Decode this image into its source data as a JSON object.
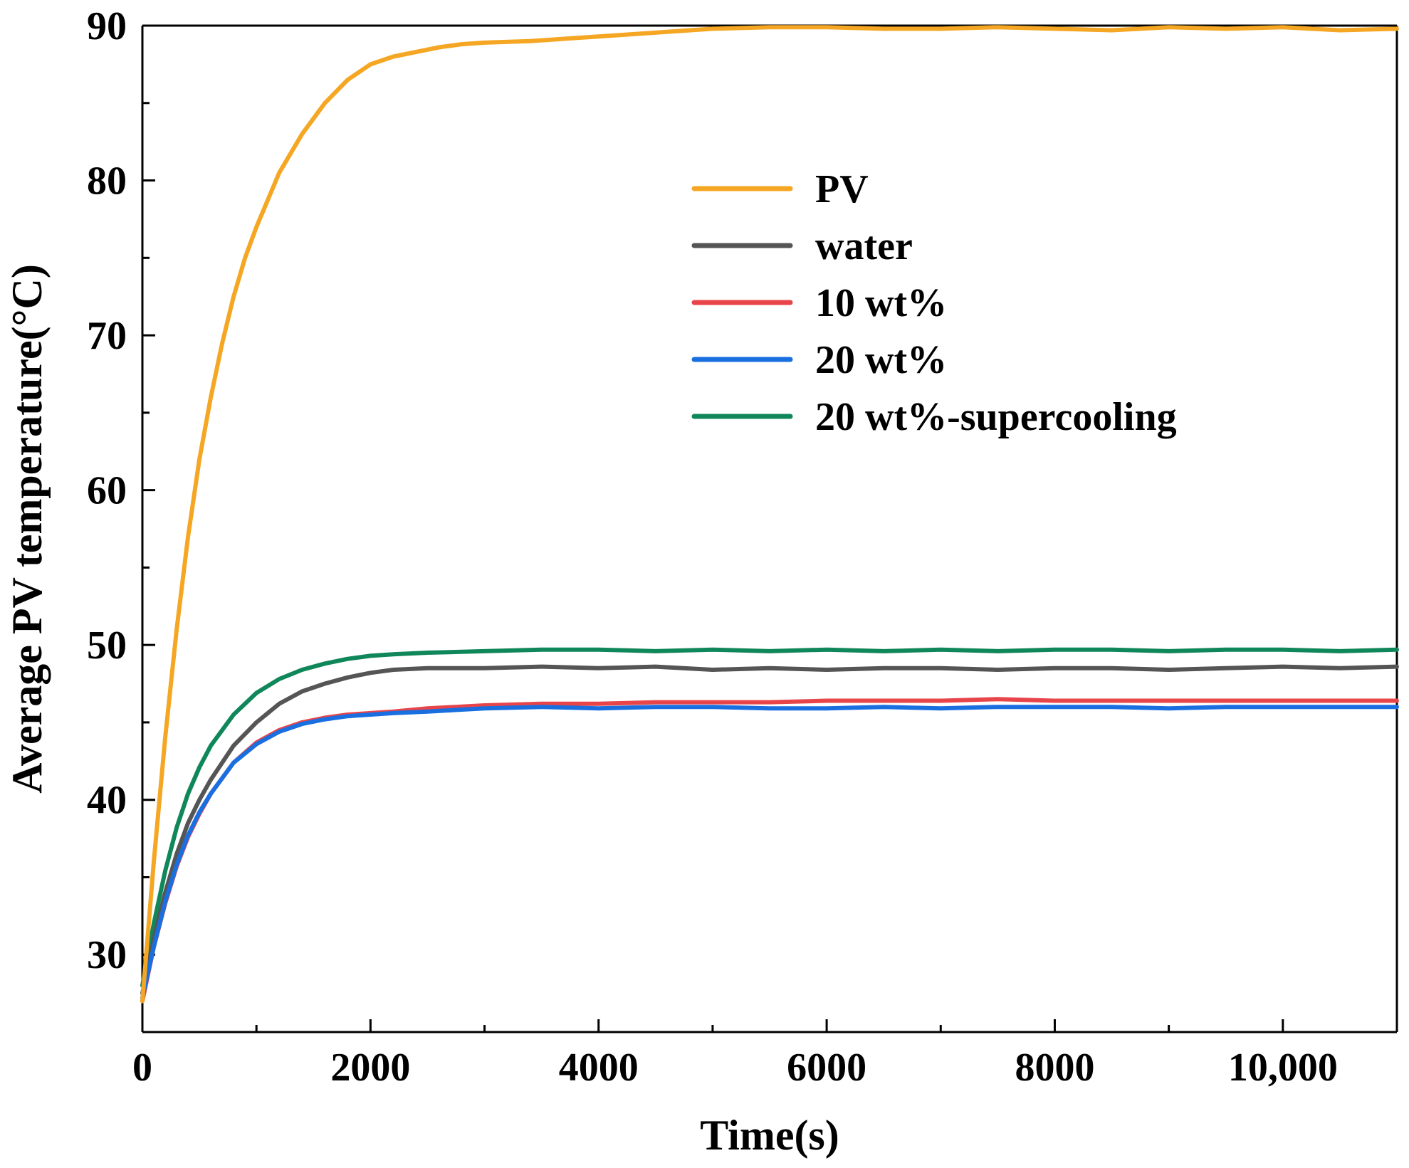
{
  "chart_data": {
    "type": "line",
    "title": "",
    "xlabel": "Time(s)",
    "ylabel": "Average PV temperature(°C)",
    "xlim": [
      0,
      11000
    ],
    "ylim": [
      25,
      90
    ],
    "x_ticks": [
      0,
      2000,
      4000,
      6000,
      8000,
      10000
    ],
    "x_tick_labels": [
      "0",
      "2000",
      "4000",
      "6000",
      "8000",
      "10,000"
    ],
    "x_minor_ticks": [
      1000,
      3000,
      5000,
      7000,
      9000
    ],
    "y_ticks": [
      30,
      40,
      50,
      60,
      70,
      80,
      90
    ],
    "y_tick_labels": [
      "30",
      "40",
      "50",
      "60",
      "70",
      "80",
      "90"
    ],
    "y_minor_ticks": [
      35,
      45,
      55,
      65,
      75,
      85
    ],
    "legend_position": "upper-middle-right",
    "series": [
      {
        "name": "PV",
        "color": "#F5A623",
        "x": [
          0,
          100,
          200,
          300,
          400,
          500,
          600,
          700,
          800,
          900,
          1000,
          1200,
          1400,
          1600,
          1800,
          2000,
          2200,
          2400,
          2600,
          2800,
          3000,
          3400,
          3800,
          4200,
          4600,
          5000,
          5500,
          6000,
          6500,
          7000,
          7500,
          8000,
          8500,
          9000,
          9500,
          10000,
          10500,
          11000
        ],
        "values": [
          27.0,
          36.0,
          44.0,
          51.0,
          57.0,
          62.0,
          66.0,
          69.5,
          72.5,
          75.0,
          77.0,
          80.5,
          83.0,
          85.0,
          86.5,
          87.5,
          88.0,
          88.3,
          88.6,
          88.8,
          88.9,
          89.0,
          89.2,
          89.4,
          89.6,
          89.8,
          89.9,
          89.9,
          89.8,
          89.8,
          89.9,
          89.8,
          89.7,
          89.9,
          89.8,
          89.9,
          89.7,
          89.8
        ]
      },
      {
        "name": "water",
        "color": "#555555",
        "x": [
          0,
          100,
          200,
          300,
          400,
          500,
          600,
          800,
          1000,
          1200,
          1400,
          1600,
          1800,
          2000,
          2200,
          2500,
          3000,
          3500,
          4000,
          4500,
          5000,
          5500,
          6000,
          6500,
          7000,
          7500,
          8000,
          8500,
          9000,
          9500,
          10000,
          10500,
          11000
        ],
        "values": [
          27.5,
          31.0,
          34.0,
          36.5,
          38.5,
          40.0,
          41.3,
          43.5,
          45.0,
          46.2,
          47.0,
          47.5,
          47.9,
          48.2,
          48.4,
          48.5,
          48.5,
          48.6,
          48.5,
          48.6,
          48.4,
          48.5,
          48.4,
          48.5,
          48.5,
          48.4,
          48.5,
          48.5,
          48.4,
          48.5,
          48.6,
          48.5,
          48.6
        ]
      },
      {
        "name": "10 wt%",
        "color": "#E8454A",
        "x": [
          0,
          100,
          200,
          300,
          400,
          500,
          600,
          800,
          1000,
          1200,
          1400,
          1600,
          1800,
          2000,
          2200,
          2500,
          3000,
          3500,
          4000,
          4500,
          5000,
          5500,
          6000,
          6500,
          7000,
          7500,
          8000,
          8500,
          9000,
          9500,
          10000,
          10500,
          11000
        ],
        "values": [
          27.0,
          30.5,
          33.3,
          35.7,
          37.6,
          39.1,
          40.4,
          42.4,
          43.7,
          44.5,
          45.0,
          45.3,
          45.5,
          45.6,
          45.7,
          45.9,
          46.1,
          46.2,
          46.2,
          46.3,
          46.3,
          46.3,
          46.4,
          46.4,
          46.4,
          46.5,
          46.4,
          46.4,
          46.4,
          46.4,
          46.4,
          46.4,
          46.4
        ]
      },
      {
        "name": "20 wt%",
        "color": "#1A6FE0",
        "x": [
          0,
          100,
          200,
          300,
          400,
          500,
          600,
          800,
          1000,
          1200,
          1400,
          1600,
          1800,
          2000,
          2200,
          2500,
          3000,
          3500,
          4000,
          4500,
          5000,
          5500,
          6000,
          6500,
          7000,
          7500,
          8000,
          8500,
          9000,
          9500,
          10000,
          10500,
          11000
        ],
        "values": [
          27.2,
          30.5,
          33.4,
          35.8,
          37.7,
          39.2,
          40.4,
          42.4,
          43.6,
          44.4,
          44.9,
          45.2,
          45.4,
          45.5,
          45.6,
          45.7,
          45.9,
          46.0,
          45.9,
          46.0,
          46.0,
          45.9,
          45.9,
          46.0,
          45.9,
          46.0,
          46.0,
          46.0,
          45.9,
          46.0,
          46.0,
          46.0,
          46.0
        ]
      },
      {
        "name": "20 wt%-supercooling",
        "color": "#10875A",
        "x": [
          0,
          100,
          200,
          300,
          400,
          500,
          600,
          800,
          1000,
          1200,
          1400,
          1600,
          1800,
          2000,
          2200,
          2500,
          3000,
          3500,
          4000,
          4500,
          5000,
          5500,
          6000,
          6500,
          7000,
          7500,
          8000,
          8500,
          9000,
          9500,
          10000,
          10500,
          11000
        ],
        "values": [
          28.0,
          32.0,
          35.4,
          38.2,
          40.4,
          42.1,
          43.5,
          45.5,
          46.9,
          47.8,
          48.4,
          48.8,
          49.1,
          49.3,
          49.4,
          49.5,
          49.6,
          49.7,
          49.7,
          49.6,
          49.7,
          49.6,
          49.7,
          49.6,
          49.7,
          49.6,
          49.7,
          49.7,
          49.6,
          49.7,
          49.7,
          49.6,
          49.7
        ]
      }
    ]
  }
}
